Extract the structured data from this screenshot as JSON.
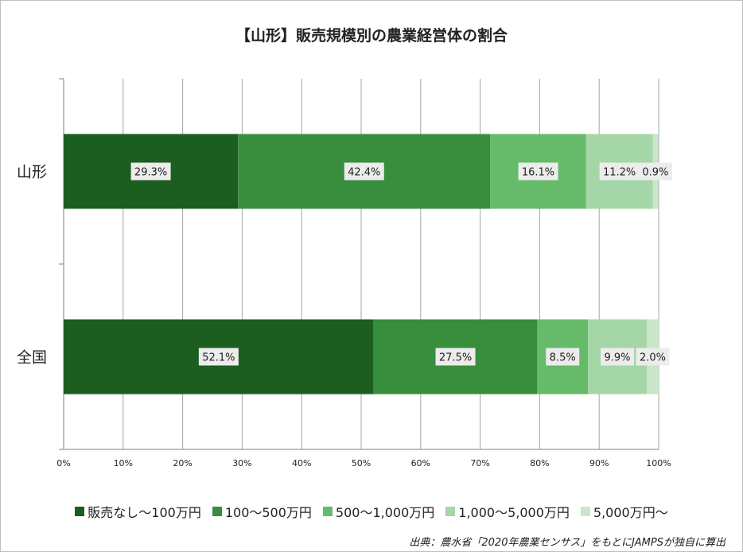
{
  "chart_data": {
    "type": "bar",
    "orientation": "horizontal",
    "stacked": true,
    "title": "【山形】販売規模別の農業経営体の割合",
    "categories": [
      "山形",
      "全国"
    ],
    "series": [
      {
        "name": "販売なし～100万円",
        "values": [
          29.3,
          52.1
        ],
        "labels": [
          "29.3%",
          "52.1%"
        ],
        "color": "#1b5e20"
      },
      {
        "name": "100～500万円",
        "values": [
          42.4,
          27.5
        ],
        "labels": [
          "42.4%",
          "27.5%"
        ],
        "color": "#388e3c"
      },
      {
        "name": "500～1,000万円",
        "values": [
          16.1,
          8.5
        ],
        "labels": [
          "16.1%",
          "8.5%"
        ],
        "color": "#66bb6a"
      },
      {
        "name": "1,000～5,000万円",
        "values": [
          11.2,
          9.9
        ],
        "labels": [
          "11.2%",
          "9.9%"
        ],
        "color": "#a5d6a7"
      },
      {
        "name": "5,000万円～",
        "values": [
          0.9,
          2.0
        ],
        "labels": [
          "0.9%",
          "2.0%"
        ],
        "color": "#c8e6c9"
      }
    ],
    "xlim": [
      0,
      100
    ],
    "xticks": [
      "0%",
      "10%",
      "20%",
      "30%",
      "40%",
      "50%",
      "60%",
      "70%",
      "80%",
      "90%",
      "100%"
    ],
    "grid": true,
    "legend": "bottom"
  },
  "source": "出典：農水省「2020年農業センサス」をもとにJAMPSが独自に算出"
}
